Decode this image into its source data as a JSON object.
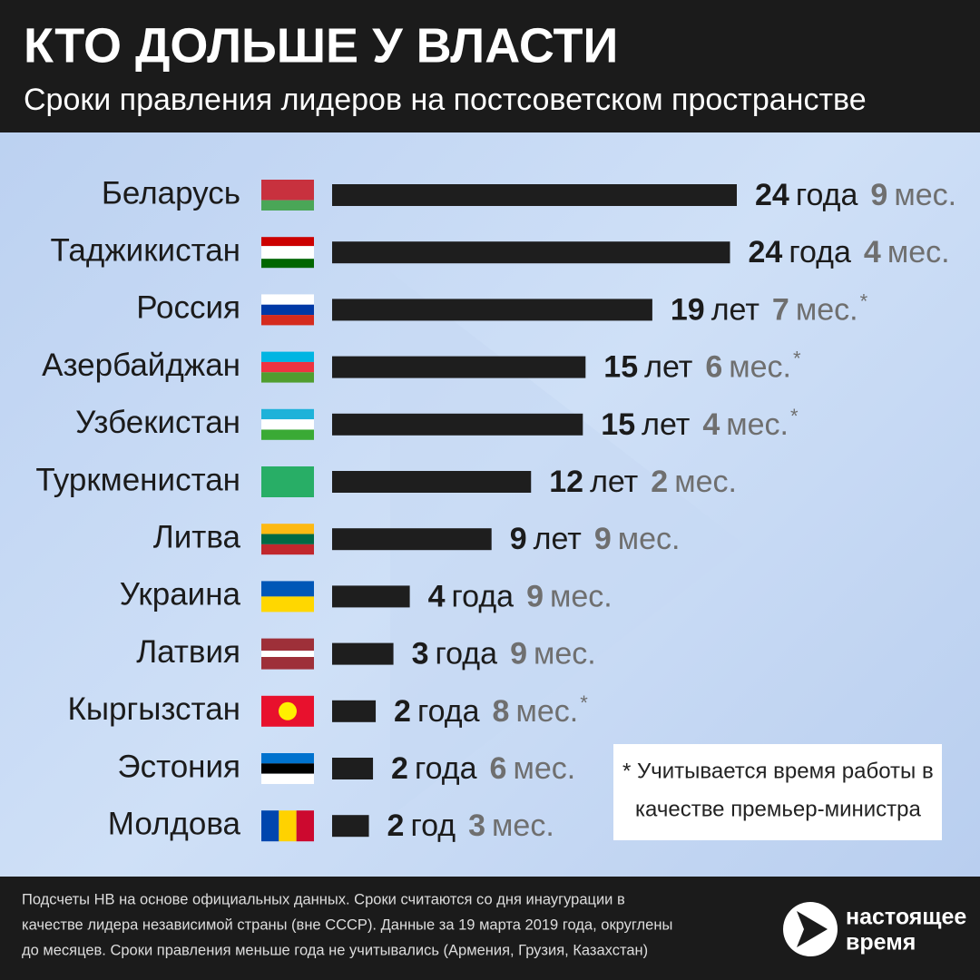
{
  "chart_data": {
    "type": "bar",
    "orientation": "horizontal",
    "title": "КТО ДОЛЬШЕ У ВЛАСТИ",
    "subtitle": "Сроки правления лидеров на постсоветском пространстве",
    "categories": [
      "Беларусь",
      "Таджикистан",
      "Россия",
      "Азербайджан",
      "Узбекистан",
      "Туркменистан",
      "Литва",
      "Украина",
      "Латвия",
      "Кыргызстан",
      "Эстония",
      "Молдова"
    ],
    "years": [
      24,
      24,
      19,
      15,
      15,
      12,
      9,
      4,
      3,
      2,
      2,
      2
    ],
    "year_words": [
      "года",
      "года",
      "лет",
      "лет",
      "лет",
      "лет",
      "лет",
      "года",
      "года",
      "года",
      "года",
      "год"
    ],
    "months": [
      9,
      4,
      7,
      6,
      4,
      2,
      9,
      9,
      9,
      8,
      6,
      3
    ],
    "month_unit": "мес.",
    "footnoted": [
      false,
      false,
      true,
      true,
      true,
      false,
      false,
      false,
      false,
      true,
      false,
      false
    ],
    "footnote_mark": "*",
    "color": "#1e1e1e",
    "note": [
      "* Учитывается время работы в",
      "качестве премьер-министра"
    ],
    "footer": [
      "Подсчеты НВ на основе официальных данных. Сроки считаются со дня инаугурации в",
      "качестве лидера независимой страны (вне СССР). Данные за 19 марта 2019 года, округлены",
      "до месяцев. Сроки правления меньше года не учитывались (Армения, Грузия, Казахстан)"
    ],
    "logo": [
      "настоящее",
      "время"
    ]
  }
}
